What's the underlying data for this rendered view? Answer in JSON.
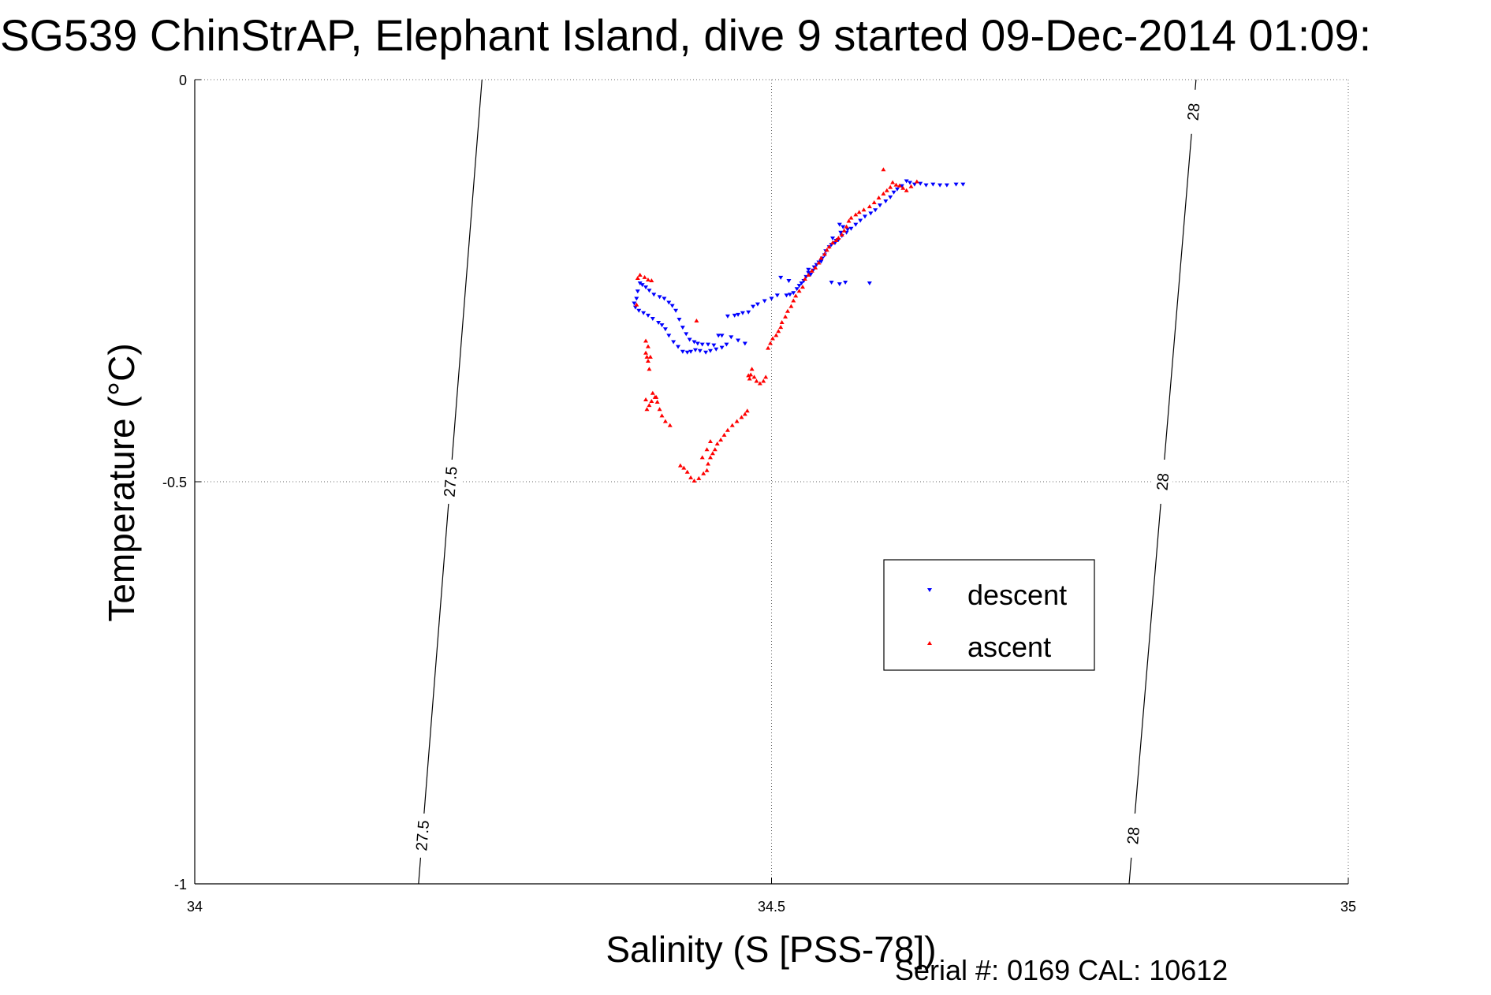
{
  "chart_data": {
    "type": "scatter",
    "title": "SG539 ChinStrAP, Elephant Island, dive 9 started 09-Dec-2014 01:09:",
    "xlabel": "Salinity (S [PSS-78])",
    "ylabel": "Temperature (°C)",
    "xlim": [
      34,
      35
    ],
    "ylim": [
      -1,
      0
    ],
    "y_direction": "reversed (0 at top, -1 at bottom)",
    "xticks": [
      "34",
      "34.5",
      "35"
    ],
    "yticks": [
      "0",
      "-0.5",
      "-1"
    ],
    "grid": "dotted, on",
    "legend": {
      "position": "right-center",
      "entries": [
        {
          "label": "descent",
          "color": "#0000ff",
          "marker": "triangle-down"
        },
        {
          "label": "ascent",
          "color": "#ff0000",
          "marker": "triangle-up"
        }
      ]
    },
    "density_contours": [
      {
        "label": "27.5",
        "label_copies": 2,
        "points": [
          [
            34.249,
            0.0
          ],
          [
            34.194,
            -1.0
          ]
        ]
      },
      {
        "label": "28",
        "label_copies": 3,
        "points": [
          [
            34.868,
            0.0
          ],
          [
            34.81,
            -1.0
          ]
        ]
      }
    ],
    "series": [
      {
        "name": "descent",
        "color": "#0000ff",
        "marker": "triangle-down",
        "points": [
          [
            34.617,
            -0.126
          ],
          [
            34.62,
            -0.128
          ],
          [
            34.624,
            -0.13
          ],
          [
            34.629,
            -0.129
          ],
          [
            34.634,
            -0.131
          ],
          [
            34.64,
            -0.13
          ],
          [
            34.646,
            -0.131
          ],
          [
            34.652,
            -0.131
          ],
          [
            34.66,
            -0.13
          ],
          [
            34.666,
            -0.13
          ],
          [
            34.613,
            -0.132
          ],
          [
            34.609,
            -0.136
          ],
          [
            34.606,
            -0.14
          ],
          [
            34.603,
            -0.146
          ],
          [
            34.599,
            -0.151
          ],
          [
            34.594,
            -0.156
          ],
          [
            34.59,
            -0.162
          ],
          [
            34.586,
            -0.166
          ],
          [
            34.581,
            -0.17
          ],
          [
            34.577,
            -0.175
          ],
          [
            34.573,
            -0.18
          ],
          [
            34.569,
            -0.185
          ],
          [
            34.565,
            -0.19
          ],
          [
            34.559,
            -0.18
          ],
          [
            34.562,
            -0.183
          ],
          [
            34.566,
            -0.186
          ],
          [
            34.56,
            -0.19
          ],
          [
            34.561,
            -0.194
          ],
          [
            34.558,
            -0.199
          ],
          [
            34.555,
            -0.203
          ],
          [
            34.552,
            -0.205
          ],
          [
            34.556,
            -0.2
          ],
          [
            34.553,
            -0.197
          ],
          [
            34.55,
            -0.208
          ],
          [
            34.547,
            -0.213
          ],
          [
            34.546,
            -0.218
          ],
          [
            34.544,
            -0.222
          ],
          [
            34.541,
            -0.227
          ],
          [
            34.539,
            -0.23
          ],
          [
            34.543,
            -0.226
          ],
          [
            34.537,
            -0.233
          ],
          [
            34.536,
            -0.237
          ],
          [
            34.534,
            -0.242
          ],
          [
            34.532,
            -0.236
          ],
          [
            34.532,
            -0.24
          ],
          [
            34.53,
            -0.245
          ],
          [
            34.528,
            -0.25
          ],
          [
            34.526,
            -0.253
          ],
          [
            34.524,
            -0.256
          ],
          [
            34.522,
            -0.26
          ],
          [
            34.519,
            -0.265
          ],
          [
            34.516,
            -0.267
          ],
          [
            34.513,
            -0.268
          ],
          [
            34.508,
            -0.246
          ],
          [
            34.515,
            -0.25
          ],
          [
            34.505,
            -0.268
          ],
          [
            34.5,
            -0.272
          ],
          [
            34.494,
            -0.275
          ],
          [
            34.488,
            -0.279
          ],
          [
            34.484,
            -0.282
          ],
          [
            34.48,
            -0.289
          ],
          [
            34.475,
            -0.29
          ],
          [
            34.471,
            -0.292
          ],
          [
            34.468,
            -0.293
          ],
          [
            34.462,
            -0.294
          ],
          [
            34.457,
            -0.318
          ],
          [
            34.465,
            -0.32
          ],
          [
            34.471,
            -0.324
          ],
          [
            34.477,
            -0.328
          ],
          [
            34.454,
            -0.318
          ],
          [
            34.45,
            -0.33
          ],
          [
            34.445,
            -0.329
          ],
          [
            34.44,
            -0.329
          ],
          [
            34.436,
            -0.328
          ],
          [
            34.433,
            -0.326
          ],
          [
            34.429,
            -0.323
          ],
          [
            34.426,
            -0.316
          ],
          [
            34.423,
            -0.308
          ],
          [
            34.42,
            -0.298
          ],
          [
            34.417,
            -0.287
          ],
          [
            34.414,
            -0.281
          ],
          [
            34.411,
            -0.277
          ],
          [
            34.407,
            -0.272
          ],
          [
            34.403,
            -0.27
          ],
          [
            34.398,
            -0.267
          ],
          [
            34.394,
            -0.262
          ],
          [
            34.391,
            -0.258
          ],
          [
            34.388,
            -0.255
          ],
          [
            34.386,
            -0.253
          ],
          [
            34.384,
            -0.263
          ],
          [
            34.383,
            -0.272
          ],
          [
            34.381,
            -0.278
          ],
          [
            34.382,
            -0.283
          ],
          [
            34.385,
            -0.287
          ],
          [
            34.389,
            -0.29
          ],
          [
            34.393,
            -0.293
          ],
          [
            34.397,
            -0.297
          ],
          [
            34.402,
            -0.302
          ],
          [
            34.405,
            -0.305
          ],
          [
            34.408,
            -0.31
          ],
          [
            34.411,
            -0.318
          ],
          [
            34.415,
            -0.326
          ],
          [
            34.419,
            -0.332
          ],
          [
            34.423,
            -0.338
          ],
          [
            34.427,
            -0.339
          ],
          [
            34.43,
            -0.338
          ],
          [
            34.434,
            -0.336
          ],
          [
            34.438,
            -0.337
          ],
          [
            34.443,
            -0.339
          ],
          [
            34.447,
            -0.337
          ],
          [
            34.452,
            -0.335
          ],
          [
            34.457,
            -0.333
          ],
          [
            34.461,
            -0.329
          ],
          [
            34.552,
            -0.252
          ],
          [
            34.559,
            -0.254
          ],
          [
            34.564,
            -0.252
          ],
          [
            34.585,
            -0.253
          ]
        ]
      },
      {
        "name": "ascent",
        "color": "#ff0000",
        "marker": "triangle-up",
        "points": [
          [
            34.597,
            -0.112
          ],
          [
            34.605,
            -0.128
          ],
          [
            34.608,
            -0.131
          ],
          [
            34.611,
            -0.132
          ],
          [
            34.614,
            -0.135
          ],
          [
            34.617,
            -0.138
          ],
          [
            34.621,
            -0.133
          ],
          [
            34.626,
            -0.127
          ],
          [
            34.603,
            -0.134
          ],
          [
            34.6,
            -0.138
          ],
          [
            34.597,
            -0.142
          ],
          [
            34.593,
            -0.147
          ],
          [
            34.589,
            -0.153
          ],
          [
            34.585,
            -0.158
          ],
          [
            34.58,
            -0.162
          ],
          [
            34.576,
            -0.165
          ],
          [
            34.573,
            -0.168
          ],
          [
            34.569,
            -0.172
          ],
          [
            34.567,
            -0.176
          ],
          [
            34.565,
            -0.183
          ],
          [
            34.563,
            -0.188
          ],
          [
            34.561,
            -0.193
          ],
          [
            34.558,
            -0.197
          ],
          [
            34.556,
            -0.2
          ],
          [
            34.553,
            -0.203
          ],
          [
            34.55,
            -0.208
          ],
          [
            34.548,
            -0.212
          ],
          [
            34.546,
            -0.217
          ],
          [
            34.543,
            -0.222
          ],
          [
            34.541,
            -0.228
          ],
          [
            34.538,
            -0.234
          ],
          [
            34.535,
            -0.238
          ],
          [
            34.532,
            -0.243
          ],
          [
            34.529,
            -0.248
          ],
          [
            34.527,
            -0.258
          ],
          [
            34.524,
            -0.263
          ],
          [
            34.521,
            -0.269
          ],
          [
            34.519,
            -0.275
          ],
          [
            34.517,
            -0.282
          ],
          [
            34.514,
            -0.288
          ],
          [
            34.512,
            -0.295
          ],
          [
            34.509,
            -0.302
          ],
          [
            34.508,
            -0.308
          ],
          [
            34.506,
            -0.313
          ],
          [
            34.504,
            -0.318
          ],
          [
            34.501,
            -0.322
          ],
          [
            34.499,
            -0.328
          ],
          [
            34.497,
            -0.334
          ],
          [
            34.495,
            -0.37
          ],
          [
            34.493,
            -0.375
          ],
          [
            34.49,
            -0.378
          ],
          [
            34.487,
            -0.375
          ],
          [
            34.485,
            -0.37
          ],
          [
            34.483,
            -0.36
          ],
          [
            34.482,
            -0.367
          ],
          [
            34.481,
            -0.372
          ],
          [
            34.48,
            -0.368
          ],
          [
            34.479,
            -0.412
          ],
          [
            34.477,
            -0.416
          ],
          [
            34.474,
            -0.42
          ],
          [
            34.47,
            -0.425
          ],
          [
            34.466,
            -0.43
          ],
          [
            34.462,
            -0.436
          ],
          [
            34.459,
            -0.442
          ],
          [
            34.456,
            -0.448
          ],
          [
            34.453,
            -0.453
          ],
          [
            34.451,
            -0.46
          ],
          [
            34.449,
            -0.465
          ],
          [
            34.447,
            -0.47
          ],
          [
            34.445,
            -0.478
          ],
          [
            34.444,
            -0.486
          ],
          [
            34.441,
            -0.49
          ],
          [
            34.437,
            -0.496
          ],
          [
            34.433,
            -0.499
          ],
          [
            34.43,
            -0.495
          ],
          [
            34.427,
            -0.488
          ],
          [
            34.424,
            -0.483
          ],
          [
            34.421,
            -0.48
          ],
          [
            34.44,
            -0.47
          ],
          [
            34.444,
            -0.46
          ],
          [
            34.447,
            -0.45
          ],
          [
            34.412,
            -0.43
          ],
          [
            34.408,
            -0.425
          ],
          [
            34.405,
            -0.418
          ],
          [
            34.403,
            -0.41
          ],
          [
            34.401,
            -0.401
          ],
          [
            34.399,
            -0.395
          ],
          [
            34.397,
            -0.39
          ],
          [
            34.396,
            -0.4
          ],
          [
            34.394,
            -0.405
          ],
          [
            34.392,
            -0.41
          ],
          [
            34.391,
            -0.398
          ],
          [
            34.4,
            -0.395
          ],
          [
            34.392,
            -0.345
          ],
          [
            34.391,
            -0.34
          ],
          [
            34.393,
            -0.332
          ],
          [
            34.391,
            -0.325
          ],
          [
            34.393,
            -0.35
          ],
          [
            34.395,
            -0.345
          ],
          [
            34.394,
            -0.36
          ],
          [
            34.386,
            -0.243
          ],
          [
            34.39,
            -0.246
          ],
          [
            34.393,
            -0.249
          ],
          [
            34.396,
            -0.25
          ],
          [
            34.384,
            -0.247
          ],
          [
            34.383,
            -0.28
          ],
          [
            34.435,
            -0.3
          ]
        ]
      }
    ]
  },
  "footer": {
    "serial_text": "Serial #: 0169 CAL: 10612"
  }
}
